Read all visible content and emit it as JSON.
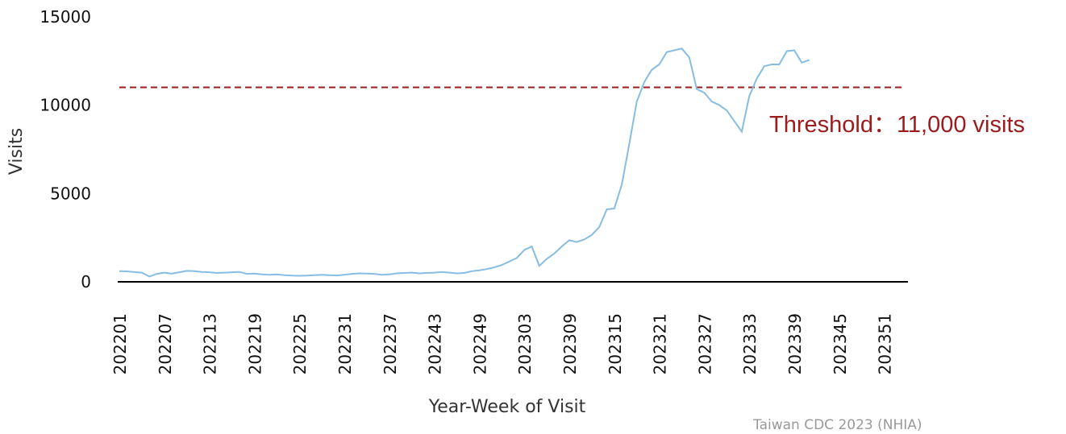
{
  "chart_data": {
    "type": "line",
    "xlabel": "Year-Week of Visit",
    "ylabel": "Visits",
    "ylim": [
      0,
      15000
    ],
    "yticks": [
      0,
      5000,
      10000,
      15000
    ],
    "xtick_labels": [
      "202201",
      "202207",
      "202213",
      "202219",
      "202225",
      "202231",
      "202237",
      "202243",
      "202249",
      "202303",
      "202309",
      "202315",
      "202321",
      "202327",
      "202333",
      "202339",
      "202345",
      "202351"
    ],
    "x_start_week": "202201",
    "series": [
      {
        "color": "#87bde2",
        "values": [
          600,
          590,
          550,
          520,
          300,
          450,
          520,
          460,
          540,
          620,
          600,
          560,
          540,
          500,
          520,
          540,
          560,
          450,
          470,
          420,
          400,
          420,
          380,
          350,
          340,
          350,
          380,
          400,
          380,
          360,
          400,
          450,
          480,
          470,
          450,
          400,
          420,
          480,
          500,
          520,
          480,
          500,
          520,
          560,
          520,
          480,
          500,
          600,
          650,
          720,
          820,
          950,
          1150,
          1350,
          1800,
          2000,
          900,
          1300,
          1600,
          2000,
          2350,
          2250,
          2400,
          2650,
          3100,
          4100,
          4150,
          5500,
          7800,
          10200,
          11300,
          12000,
          12300,
          13000,
          13100,
          13200,
          12700,
          10900,
          10700,
          10200,
          10000,
          9700,
          9100,
          8500,
          10500,
          11500,
          12200,
          12300,
          12300,
          13050,
          13100,
          12400,
          12550
        ]
      }
    ],
    "threshold": {
      "value": 11000,
      "label": "Threshold：11,000 visits",
      "color": "#9b1c1c"
    },
    "annotation": "Taiwan CDC 2023 (NHIA)"
  }
}
